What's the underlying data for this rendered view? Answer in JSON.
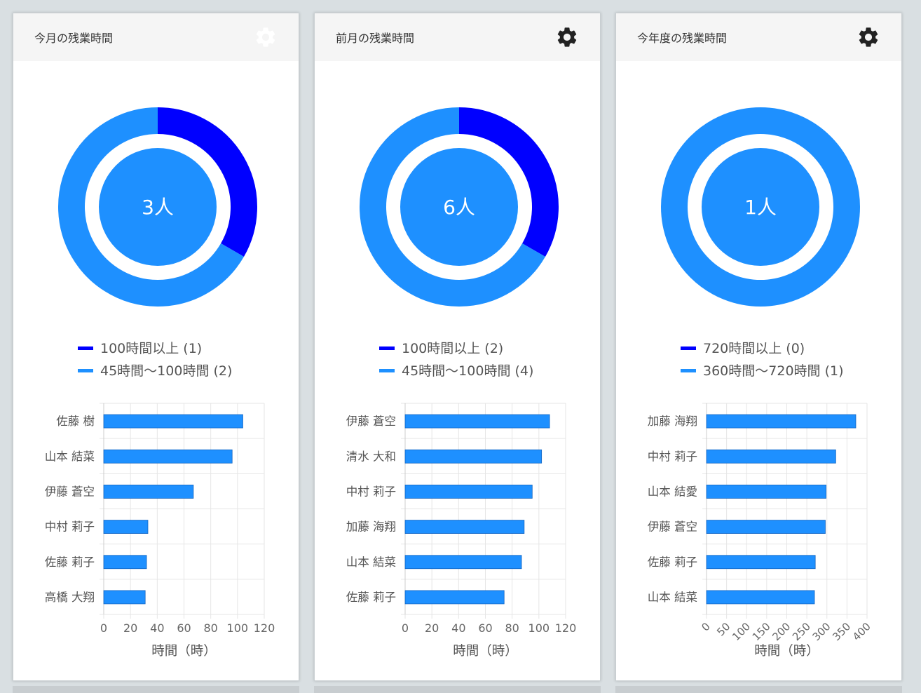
{
  "cards": [
    {
      "title": "今月の残業時間",
      "active": true,
      "gear_icon": "gear-icon",
      "donut": {
        "center_label": "3人",
        "segments": [
          {
            "label": "100時間以上 (1)",
            "value": 1,
            "color": "#0000ff"
          },
          {
            "label": "45時間〜100時間 (2)",
            "value": 2,
            "color": "#1e90ff"
          }
        ]
      },
      "chart_data": {
        "type": "bar",
        "orientation": "horizontal",
        "categories": [
          "佐藤 樹",
          "山本 結菜",
          "伊藤 蒼空",
          "中村 莉子",
          "佐藤 莉子",
          "高橋 大翔"
        ],
        "values": [
          104,
          96,
          67,
          33,
          32,
          31
        ],
        "xlabel": "時間（時）",
        "xlim": [
          0,
          120
        ],
        "ticks": [
          0,
          20,
          40,
          60,
          80,
          100,
          120
        ],
        "rotate_ticks": false,
        "color": "#1e90ff",
        "grid": true
      }
    },
    {
      "title": "前月の残業時間",
      "active": false,
      "gear_icon": "gear-icon",
      "donut": {
        "center_label": "6人",
        "segments": [
          {
            "label": "100時間以上 (2)",
            "value": 2,
            "color": "#0000ff"
          },
          {
            "label": "45時間〜100時間 (4)",
            "value": 4,
            "color": "#1e90ff"
          }
        ]
      },
      "chart_data": {
        "type": "bar",
        "orientation": "horizontal",
        "categories": [
          "伊藤 蒼空",
          "清水 大和",
          "中村 莉子",
          "加藤 海翔",
          "山本 結菜",
          "佐藤 莉子"
        ],
        "values": [
          108,
          102,
          95,
          89,
          87,
          74
        ],
        "xlabel": "時間（時）",
        "xlim": [
          0,
          120
        ],
        "ticks": [
          0,
          20,
          40,
          60,
          80,
          100,
          120
        ],
        "rotate_ticks": false,
        "color": "#1e90ff",
        "grid": true
      }
    },
    {
      "title": "今年度の残業時間",
      "active": false,
      "gear_icon": "gear-icon",
      "donut": {
        "center_label": "1人",
        "segments": [
          {
            "label": "720時間以上 (0)",
            "value": 0,
            "color": "#0000ff"
          },
          {
            "label": "360時間〜720時間 (1)",
            "value": 1,
            "color": "#1e90ff"
          }
        ]
      },
      "chart_data": {
        "type": "bar",
        "orientation": "horizontal",
        "categories": [
          "加藤 海翔",
          "中村 莉子",
          "山本 結愛",
          "伊藤 蒼空",
          "佐藤 莉子",
          "山本 結菜"
        ],
        "values": [
          372,
          322,
          298,
          296,
          271,
          269
        ],
        "xlabel": "時間（時）",
        "xlim": [
          0,
          400
        ],
        "ticks": [
          0,
          50,
          100,
          150,
          200,
          250,
          300,
          350,
          400
        ],
        "rotate_ticks": true,
        "color": "#1e90ff",
        "grid": true
      }
    }
  ]
}
